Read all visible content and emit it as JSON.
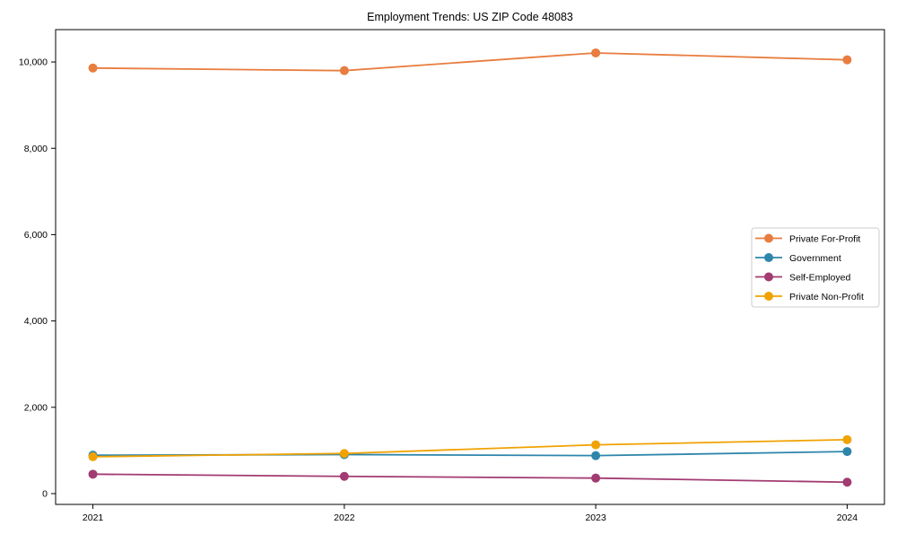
{
  "chart_data": {
    "type": "line",
    "title": "Employment Trends: US ZIP Code 48083",
    "x_categories": [
      "2021",
      "2022",
      "2023",
      "2024"
    ],
    "series": [
      {
        "name": "Private For-Profit",
        "color": "#E87D3F",
        "values": [
          9860,
          9800,
          10210,
          10050
        ]
      },
      {
        "name": "Government",
        "color": "#2E86AB",
        "values": [
          890,
          905,
          880,
          975
        ]
      },
      {
        "name": "Self-Employed",
        "color": "#A23B72",
        "values": [
          450,
          400,
          360,
          265
        ]
      },
      {
        "name": "Private Non-Profit",
        "color": "#F0A202",
        "values": [
          855,
          930,
          1130,
          1250
        ]
      }
    ],
    "yticks": [
      0,
      2000,
      4000,
      6000,
      8000,
      10000
    ],
    "ytick_labels": [
      "0",
      "2,000",
      "4,000",
      "6,000",
      "8,000",
      "10,000"
    ],
    "ylim": [
      -250,
      10750
    ],
    "xlabel": "",
    "ylabel": "",
    "grid": false,
    "legend_position": "center-right",
    "background_color": "#ffffff",
    "axis_color": "#000000",
    "legend_border_color": "#cccccc"
  }
}
